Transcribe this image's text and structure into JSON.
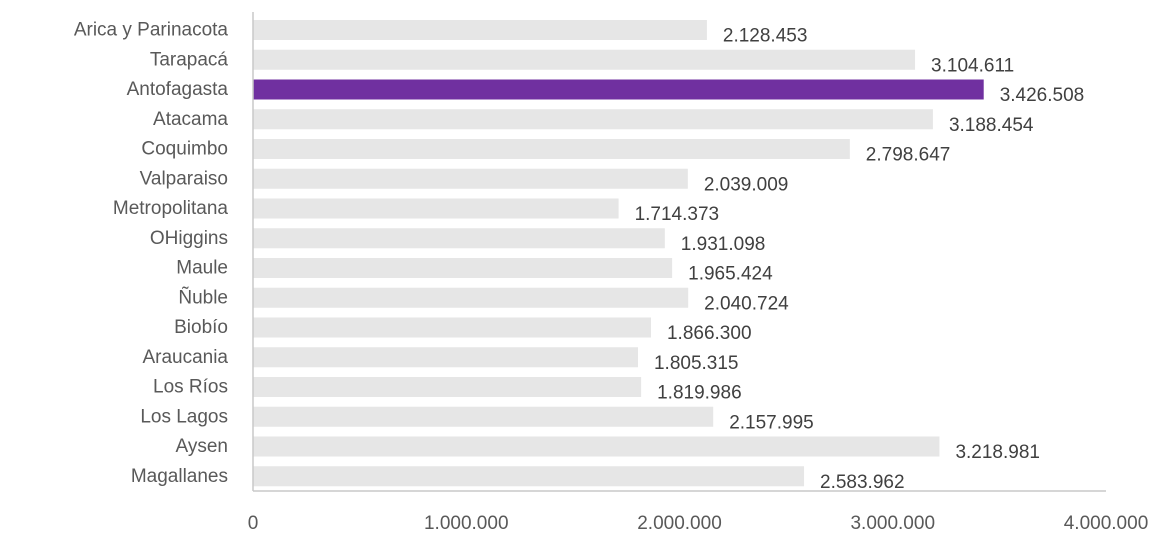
{
  "chart_data": {
    "type": "bar",
    "orientation": "horizontal",
    "title": "",
    "xlabel": "",
    "ylabel": "",
    "categories": [
      "Arica y Parinacota",
      "Tarapacá",
      "Antofagasta",
      "Atacama",
      "Coquimbo",
      "Valparaiso",
      "Metropolitana",
      "OHiggins",
      "Maule",
      "Ñuble",
      "Biobío",
      "Araucania",
      "Los Ríos",
      "Los Lagos",
      "Aysen",
      "Magallanes"
    ],
    "values": [
      2128453,
      3104611,
      3426508,
      3188454,
      2798647,
      2039009,
      1714373,
      1931098,
      1965424,
      2040724,
      1866300,
      1805315,
      1819986,
      2157995,
      3218981,
      2583962
    ],
    "value_labels": [
      "2.128.453",
      "3.104.611",
      "3.426.508",
      "3.188.454",
      "2.798.647",
      "2.039.009",
      "1.714.373",
      "1.931.098",
      "1.965.424",
      "2.040.724",
      "1.866.300",
      "1.805.315",
      "1.819.986",
      "2.157.995",
      "3.218.981",
      "2.583.962"
    ],
    "xlim": [
      0,
      4000000
    ],
    "x_ticks": [
      0,
      1000000,
      2000000,
      3000000,
      4000000
    ],
    "x_tick_labels": [
      "0",
      "1.000.000",
      "2.000.000",
      "3.000.000",
      "4.000.000"
    ],
    "highlight_category": "Antofagasta",
    "colors": {
      "bar": "#e6e6e6",
      "highlight": "#7030a0"
    },
    "grid": false,
    "legend": "none"
  }
}
